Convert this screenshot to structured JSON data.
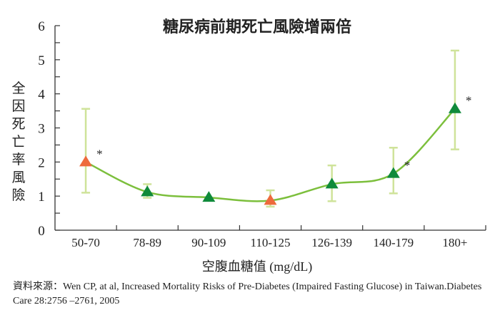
{
  "chart_data": {
    "type": "line",
    "title": "糖尿病前期死亡風險增兩倍",
    "xlabel": "空腹血糖值 (mg/dL)",
    "ylabel": "全因死亡率風險",
    "ylim": [
      0,
      6
    ],
    "yticks": [
      "0",
      "1",
      "2",
      "3",
      "4",
      "5",
      "6"
    ],
    "categories": [
      "50-70",
      "78-89",
      "90-109",
      "110-125",
      "126-139",
      "140-179",
      "180+"
    ],
    "values": [
      2.0,
      1.12,
      0.96,
      0.87,
      1.35,
      1.66,
      3.56
    ],
    "ci_lower": [
      1.1,
      0.95,
      null,
      0.69,
      0.85,
      1.08,
      2.37
    ],
    "ci_upper": [
      3.56,
      1.35,
      null,
      1.17,
      1.9,
      2.42,
      5.27
    ],
    "significant": [
      true,
      false,
      false,
      false,
      false,
      true,
      true
    ],
    "significance_mark": "*",
    "marker_colors": [
      "#ee6a3c",
      "#0f8a3a",
      "#0f8a3a",
      "#ee6a3c",
      "#0f8a3a",
      "#0f8a3a",
      "#0f8a3a"
    ],
    "line_color": "#7cbf3c",
    "errorbar_color": "#cfe39a",
    "grid": false
  },
  "source": "資料來源：Wen CP, at al, Increased Mortality Risks of Pre-Diabetes (Impaired Fasting Glucose) in Taiwan.Diabetes Care 28:2756 –2761, 2005"
}
